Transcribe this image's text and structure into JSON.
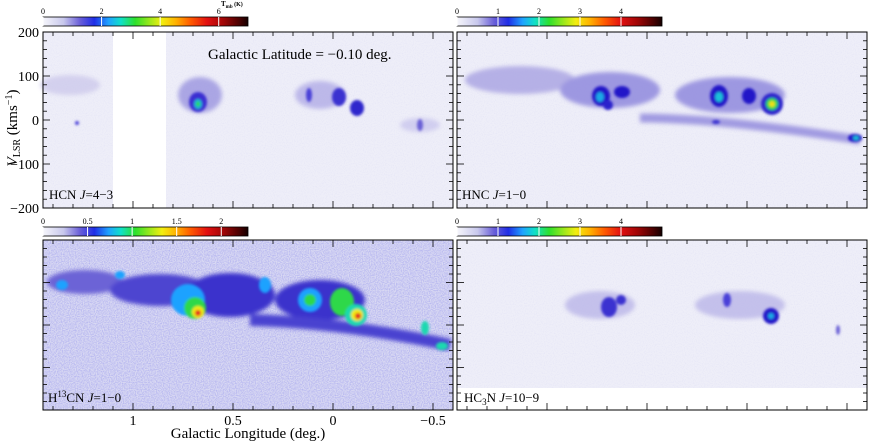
{
  "figure": {
    "annotation": "Galactic Latitude = −0.10 deg.",
    "xlabel": "Galactic Longitude (deg.)",
    "ylabel_main": "V",
    "ylabel_sub": "LSR",
    "ylabel_units": " (kms",
    "ylabel_exp": "−1",
    "ylabel_close": ")"
  },
  "chart_data": [
    {
      "type": "heatmap",
      "panel": "top-left",
      "molecule_label": "HCN J=4−3",
      "label_parts": [
        "HCN ",
        "J",
        "=4−3"
      ],
      "x_ticks": [
        "1",
        "0.5",
        "0",
        "−0.5"
      ],
      "x_tick_values": [
        1,
        0.5,
        0,
        -0.5
      ],
      "y_ticks": [
        "200",
        "100",
        "0",
        "−100",
        "−200"
      ],
      "y_tick_values": [
        200,
        100,
        0,
        -100,
        -200
      ],
      "xlim": [
        1.45,
        -0.6
      ],
      "ylim": [
        -200,
        200
      ],
      "colorbar": {
        "title_main": "T",
        "title_sub": "mb",
        "title_units": " (K)",
        "ticks": [
          "0",
          "2",
          "4",
          "6"
        ],
        "tick_values": [
          0,
          2,
          4,
          6
        ],
        "max": 7
      },
      "data_gap_longitude": [
        1.0,
        0.75
      ],
      "emission_peaks": [
        {
          "l": 0.62,
          "v": 30,
          "intensity": 0.35
        },
        {
          "l": 0.08,
          "v": 20,
          "intensity": 0.3
        },
        {
          "l": 0.25,
          "v": 50,
          "intensity": 0.25
        }
      ]
    },
    {
      "type": "heatmap",
      "panel": "top-right",
      "molecule_label": "HNC J=1−0",
      "label_parts": [
        "HNC ",
        "J",
        "=1−0"
      ],
      "xlim": [
        1.45,
        -0.6
      ],
      "ylim": [
        -200,
        200
      ],
      "colorbar": {
        "ticks": [
          "0",
          "1",
          "2",
          "3",
          "4"
        ],
        "tick_values": [
          0,
          1,
          2,
          3,
          4
        ],
        "max": 5
      },
      "emission_peaks": [
        {
          "l": 0.62,
          "v": 25,
          "intensity": 0.45
        },
        {
          "l": 0.05,
          "v": 30,
          "intensity": 0.55
        },
        {
          "l": -0.55,
          "v": -55,
          "intensity": 0.4
        }
      ]
    },
    {
      "type": "heatmap",
      "panel": "bottom-left",
      "molecule_label": "H13CN J=1−0",
      "label_parts": [
        "H",
        "13",
        "CN ",
        "J",
        "=1−0"
      ],
      "xlim": [
        1.45,
        -0.6
      ],
      "ylim": [
        -200,
        200
      ],
      "colorbar": {
        "ticks": [
          "0",
          "0.5",
          "1",
          "1.5",
          "2"
        ],
        "tick_values": [
          0,
          0.5,
          1,
          1.5,
          2
        ],
        "max": 2.3
      },
      "emission_peaks": [
        {
          "l": 0.66,
          "v": 15,
          "intensity": 0.85
        },
        {
          "l": 0.05,
          "v": 20,
          "intensity": 0.9
        },
        {
          "l": 0.18,
          "v": 40,
          "intensity": 0.6
        }
      ]
    },
    {
      "type": "heatmap",
      "panel": "bottom-right",
      "molecule_label": "HC3N J=10−9",
      "label_parts": [
        "HC",
        "3",
        "N ",
        "J",
        "=10−9"
      ],
      "xlim": [
        1.45,
        -0.6
      ],
      "ylim": [
        -200,
        200
      ],
      "colorbar": {
        "ticks": [
          "0",
          "1",
          "2",
          "3",
          "4"
        ],
        "tick_values": [
          0,
          1,
          2,
          3,
          4
        ],
        "max": 5
      },
      "emission_peaks": [
        {
          "l": 0.62,
          "v": 20,
          "intensity": 0.35
        },
        {
          "l": 0.05,
          "v": 10,
          "intensity": 0.4
        }
      ]
    }
  ]
}
